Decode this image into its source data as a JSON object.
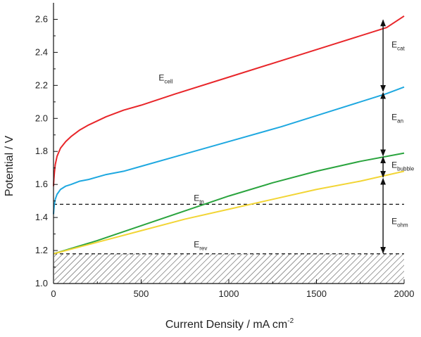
{
  "chart_data": {
    "type": "line",
    "xlabel": "Current Density / mA cm",
    "xlabel_sup": "-2",
    "ylabel": "Potential / V",
    "xlim": [
      0,
      2000
    ],
    "ylim": [
      1.0,
      2.7
    ],
    "x_ticks": [
      0,
      500,
      1000,
      1500,
      2000
    ],
    "x_tick_labels": [
      "0",
      "500",
      "1000",
      "1500",
      "2000"
    ],
    "y_ticks": [
      1.0,
      1.2,
      1.4,
      1.6,
      1.8,
      2.0,
      2.2,
      2.4,
      2.6
    ],
    "y_tick_labels": [
      "1.0",
      "1.2",
      "1.4",
      "1.6",
      "1.8",
      "2.0",
      "2.2",
      "2.4",
      "2.6"
    ],
    "grid": false,
    "series": [
      {
        "name": "E_cell",
        "color": "#e8262a",
        "x": [
          0,
          2,
          5,
          10,
          20,
          40,
          70,
          100,
          150,
          200,
          300,
          400,
          500,
          700,
          1000,
          1300,
          1600,
          1900,
          2000
        ],
        "y": [
          1.59,
          1.63,
          1.67,
          1.72,
          1.77,
          1.82,
          1.86,
          1.89,
          1.93,
          1.96,
          2.01,
          2.05,
          2.08,
          2.15,
          2.25,
          2.35,
          2.45,
          2.55,
          2.62
        ]
      },
      {
        "name": "E_an",
        "color": "#1ea8e0",
        "x": [
          0,
          2,
          5,
          10,
          20,
          40,
          70,
          100,
          150,
          200,
          300,
          400,
          500,
          700,
          1000,
          1300,
          1600,
          1900,
          2000
        ],
        "y": [
          1.42,
          1.45,
          1.48,
          1.51,
          1.54,
          1.57,
          1.59,
          1.6,
          1.62,
          1.63,
          1.66,
          1.68,
          1.71,
          1.77,
          1.86,
          1.95,
          2.05,
          2.15,
          2.19
        ]
      },
      {
        "name": "E_bubble",
        "color": "#2aa43e",
        "x": [
          0,
          250,
          500,
          750,
          1000,
          1250,
          1500,
          1750,
          2000
        ],
        "y": [
          1.18,
          1.26,
          1.35,
          1.44,
          1.53,
          1.61,
          1.68,
          1.74,
          1.79
        ]
      },
      {
        "name": "E_ohm",
        "color": "#f2d535",
        "x": [
          0,
          250,
          500,
          750,
          1000,
          1250,
          1500,
          1750,
          2000
        ],
        "y": [
          1.18,
          1.25,
          1.32,
          1.39,
          1.45,
          1.51,
          1.57,
          1.62,
          1.68
        ]
      }
    ],
    "reference_lines": [
      {
        "name": "E_tn",
        "y": 1.48,
        "style": "dashed"
      },
      {
        "name": "E_rev",
        "y": 1.18,
        "style": "dashed",
        "hatched_below": true
      }
    ],
    "curve_labels": [
      {
        "base": "E",
        "sub": "cell",
        "x": 600,
        "y": 2.23
      },
      {
        "base": "E",
        "sub": "tn",
        "x": 800,
        "y": 1.5
      },
      {
        "base": "E",
        "sub": "rev",
        "x": 800,
        "y": 1.22
      }
    ],
    "arrows": [
      {
        "x": 1880,
        "y_from": 2.16,
        "y_to": 2.6,
        "base": "E",
        "sub": "cat",
        "label_y": 2.43
      },
      {
        "x": 1880,
        "y_from": 1.77,
        "y_to": 2.16,
        "base": "E",
        "sub": "an",
        "label_y": 1.99
      },
      {
        "x": 1880,
        "y_from": 1.64,
        "y_to": 1.77,
        "base": "E",
        "sub": "bubble",
        "label_y": 1.7
      },
      {
        "x": 1880,
        "y_from": 1.18,
        "y_to": 1.64,
        "base": "E",
        "sub": "ohm",
        "label_y": 1.36
      }
    ]
  }
}
